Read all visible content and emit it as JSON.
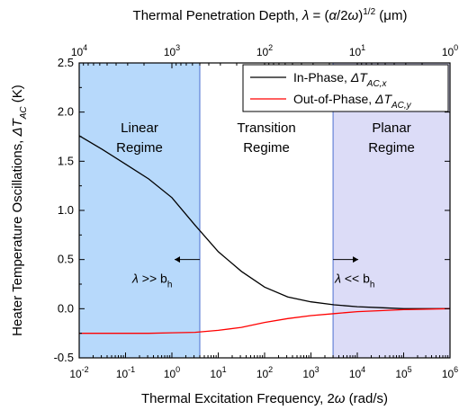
{
  "chart_data": {
    "type": "line",
    "title": "",
    "top_axis": {
      "label": "Thermal Penetration Depth, λ = (α/2ω)^(1/2) (μm)",
      "label_parts": [
        "Thermal Penetration Depth, ",
        "λ",
        " = (",
        "α",
        "/2",
        "ω",
        ")",
        "1/2",
        " (μm)"
      ],
      "tick_labels": [
        {
          "base": "10",
          "exp": "4"
        },
        {
          "base": "10",
          "exp": "3"
        },
        {
          "base": "10",
          "exp": "2"
        },
        {
          "base": "10",
          "exp": "1"
        },
        {
          "base": "10",
          "exp": "0"
        }
      ],
      "ticks_um": [
        10000,
        1000,
        100,
        10,
        1
      ],
      "scale": "log"
    },
    "xaxis": {
      "label": "Thermal Excitation Frequency, 2ω (rad/s)",
      "label_parts": [
        "Thermal Excitation Frequency, 2",
        "ω",
        " (rad/s)"
      ],
      "scale": "log",
      "xlim": [
        0.01,
        1000000
      ],
      "ticks": [
        0.01,
        0.1,
        1,
        10,
        100,
        1000,
        10000,
        100000,
        1000000
      ],
      "tick_labels": [
        {
          "base": "10",
          "exp": "-2"
        },
        {
          "base": "10",
          "exp": "-1"
        },
        {
          "base": "10",
          "exp": "0"
        },
        {
          "base": "10",
          "exp": "1"
        },
        {
          "base": "10",
          "exp": "2"
        },
        {
          "base": "10",
          "exp": "3"
        },
        {
          "base": "10",
          "exp": "4"
        },
        {
          "base": "10",
          "exp": "5"
        },
        {
          "base": "10",
          "exp": "6"
        }
      ]
    },
    "yaxis": {
      "label": "Heater Temperature Oscillations, ΔT_AC (K)",
      "label_parts": [
        "Heater Temperature Oscillations, ",
        "ΔT",
        "AC",
        " (K)"
      ],
      "ylim": [
        -0.5,
        2.5
      ],
      "ticks": [
        -0.5,
        0.0,
        0.5,
        1.0,
        1.5,
        2.0,
        2.5
      ],
      "tick_labels": [
        "-0.5",
        "0.0",
        "0.5",
        "1.0",
        "1.5",
        "2.0",
        "2.5"
      ]
    },
    "regions": [
      {
        "name": "Linear Regime",
        "lines": [
          "Linear",
          "Regime"
        ],
        "x_range": [
          0.01,
          4
        ],
        "color": "#b7d9fb"
      },
      {
        "name": "Transition Regime",
        "lines": [
          "Transition",
          "Regime"
        ],
        "x_range": [
          4,
          3000
        ],
        "color": "#ffffff"
      },
      {
        "name": "Planar Regime",
        "lines": [
          "Planar",
          "Regime"
        ],
        "x_range": [
          3000,
          1000000
        ],
        "color": "#dcdcf7"
      }
    ],
    "annotations": [
      {
        "text": "λ >> b_h",
        "parts": [
          "λ",
          " >> b",
          "h"
        ],
        "arrow": "left",
        "x": 4,
        "y": 0.5
      },
      {
        "text": "λ << b_h",
        "parts": [
          "λ",
          " << b",
          "h"
        ],
        "arrow": "right",
        "x": 3000,
        "y": 0.5
      }
    ],
    "legend": {
      "position": "top-right",
      "entries": [
        {
          "label": "In-Phase, ΔT_AC,x",
          "parts": [
            "In-Phase, ",
            "ΔT",
            "AC,x"
          ],
          "color": "#000000"
        },
        {
          "label": "Out-of-Phase, ΔT_AC,y",
          "parts": [
            "Out-of-Phase, ",
            "ΔT",
            "AC,y"
          ],
          "color": "#ff0000"
        }
      ]
    },
    "series": [
      {
        "color": "#000000",
        "x": [
          0.01,
          0.0316,
          0.1,
          0.316,
          1,
          3.16,
          10,
          31.6,
          100,
          316,
          1000,
          3162,
          10000,
          31623,
          100000,
          316228,
          1000000
        ],
        "y": [
          1.76,
          1.62,
          1.47,
          1.32,
          1.13,
          0.85,
          0.58,
          0.38,
          0.22,
          0.12,
          0.07,
          0.04,
          0.02,
          0.01,
          0.0,
          0.0,
          0.0
        ]
      },
      {
        "color": "#ff0000",
        "x": [
          0.01,
          0.0316,
          0.1,
          0.316,
          1,
          3.16,
          10,
          31.6,
          100,
          316,
          1000,
          3162,
          10000,
          31623,
          100000,
          316228,
          1000000
        ],
        "y": [
          -0.25,
          -0.25,
          -0.25,
          -0.25,
          -0.245,
          -0.24,
          -0.22,
          -0.19,
          -0.14,
          -0.1,
          -0.07,
          -0.05,
          -0.03,
          -0.02,
          -0.01,
          -0.005,
          0.0
        ]
      }
    ]
  }
}
